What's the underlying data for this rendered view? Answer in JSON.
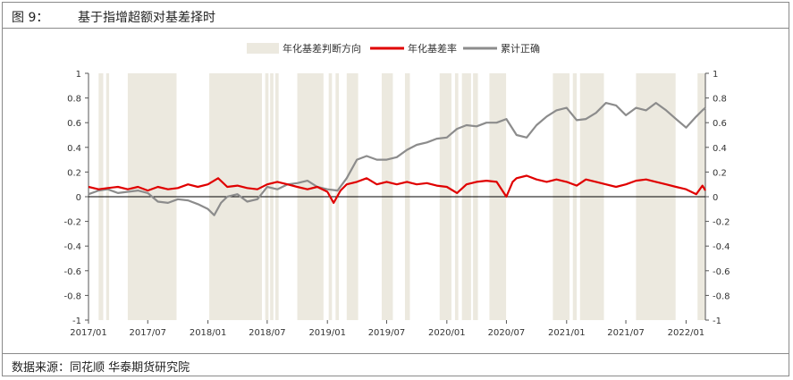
{
  "header": {
    "figure_label": "图 9：",
    "figure_title": "基于指增超额对基差择时"
  },
  "footer": {
    "source": "数据来源：同花顺 华泰期货研究院"
  },
  "colors": {
    "shade": "#ece9df",
    "basis_rate": "#e00000",
    "cumulative_accuracy": "#8c8c8c",
    "axis": "#555555"
  },
  "chart_data": {
    "type": "line",
    "legend_position": "top-center",
    "grid": false,
    "x_start": "2017-01",
    "x_end": "2022-03",
    "x_ticks": [
      "2017/01",
      "2017/07",
      "2018/01",
      "2018/07",
      "2019/01",
      "2019/07",
      "2020/01",
      "2020/07",
      "2021/01",
      "2021/07",
      "2022/01"
    ],
    "y_left": {
      "range": [
        -1,
        1
      ],
      "ticks": [
        "1",
        "0.8",
        "0.6",
        "0.4",
        "0.2",
        "0",
        "-0.2",
        "-0.4",
        "-0.6",
        "-0.8",
        "-1"
      ]
    },
    "y_right": {
      "range": [
        -1,
        1
      ],
      "ticks": [
        "1",
        "0.8",
        "0.6",
        "0.4",
        "0.2",
        "0",
        "-0.2",
        "-0.4",
        "-0.6",
        "-0.8",
        "-1"
      ]
    },
    "shade_series_name": "年化基差判断方向",
    "shaded_periods": [
      [
        "2017-02-01",
        "2017-02-15"
      ],
      [
        "2017-02-24",
        "2017-03-05"
      ],
      [
        "2017-05-01",
        "2017-09-27"
      ],
      [
        "2018-01-05",
        "2018-06-15"
      ],
      [
        "2018-06-25",
        "2018-07-05"
      ],
      [
        "2018-07-10",
        "2018-07-20"
      ],
      [
        "2018-07-26",
        "2018-08-05"
      ],
      [
        "2018-10-01",
        "2018-12-20"
      ],
      [
        "2019-01-05",
        "2019-01-15"
      ],
      [
        "2019-01-26",
        "2019-02-05"
      ],
      [
        "2019-03-01",
        "2019-04-05"
      ],
      [
        "2019-06-16",
        "2019-07-20"
      ],
      [
        "2019-08-26",
        "2019-09-10"
      ],
      [
        "2019-12-10",
        "2020-01-15"
      ],
      [
        "2020-01-26",
        "2020-02-05"
      ],
      [
        "2020-02-16",
        "2020-03-15"
      ],
      [
        "2020-03-21",
        "2020-04-05"
      ],
      [
        "2020-05-10",
        "2020-06-30"
      ],
      [
        "2020-11-20",
        "2021-01-10"
      ],
      [
        "2021-01-20",
        "2021-02-01"
      ],
      [
        "2021-02-11",
        "2021-04-25"
      ],
      [
        "2021-08-01",
        "2021-11-30"
      ],
      [
        "2022-02-05",
        "2022-03-01"
      ]
    ],
    "series": [
      {
        "name": "年化基差率",
        "axis": "left",
        "points": [
          [
            "2017-01-01",
            0.08
          ],
          [
            "2017-02-01",
            0.06
          ],
          [
            "2017-03-01",
            0.07
          ],
          [
            "2017-04-01",
            0.08
          ],
          [
            "2017-05-01",
            0.06
          ],
          [
            "2017-06-01",
            0.08
          ],
          [
            "2017-07-01",
            0.05
          ],
          [
            "2017-08-01",
            0.08
          ],
          [
            "2017-09-01",
            0.06
          ],
          [
            "2017-10-01",
            0.07
          ],
          [
            "2017-11-01",
            0.1
          ],
          [
            "2017-12-01",
            0.08
          ],
          [
            "2018-01-01",
            0.1
          ],
          [
            "2018-02-01",
            0.15
          ],
          [
            "2018-03-01",
            0.08
          ],
          [
            "2018-04-01",
            0.09
          ],
          [
            "2018-05-01",
            0.07
          ],
          [
            "2018-06-01",
            0.06
          ],
          [
            "2018-07-01",
            0.1
          ],
          [
            "2018-08-01",
            0.12
          ],
          [
            "2018-09-01",
            0.1
          ],
          [
            "2018-10-01",
            0.08
          ],
          [
            "2018-11-01",
            0.06
          ],
          [
            "2018-12-01",
            0.08
          ],
          [
            "2019-01-01",
            0.04
          ],
          [
            "2019-01-20",
            -0.05
          ],
          [
            "2019-02-10",
            0.05
          ],
          [
            "2019-03-01",
            0.1
          ],
          [
            "2019-04-01",
            0.12
          ],
          [
            "2019-05-01",
            0.15
          ],
          [
            "2019-06-01",
            0.1
          ],
          [
            "2019-07-01",
            0.12
          ],
          [
            "2019-08-01",
            0.1
          ],
          [
            "2019-09-01",
            0.12
          ],
          [
            "2019-10-01",
            0.1
          ],
          [
            "2019-11-01",
            0.11
          ],
          [
            "2019-12-01",
            0.09
          ],
          [
            "2020-01-01",
            0.08
          ],
          [
            "2020-02-01",
            0.03
          ],
          [
            "2020-03-01",
            0.1
          ],
          [
            "2020-04-01",
            0.12
          ],
          [
            "2020-05-01",
            0.13
          ],
          [
            "2020-06-01",
            0.12
          ],
          [
            "2020-07-01",
            0.0
          ],
          [
            "2020-07-20",
            0.12
          ],
          [
            "2020-08-01",
            0.15
          ],
          [
            "2020-09-01",
            0.17
          ],
          [
            "2020-10-01",
            0.14
          ],
          [
            "2020-11-01",
            0.12
          ],
          [
            "2020-12-01",
            0.14
          ],
          [
            "2021-01-01",
            0.12
          ],
          [
            "2021-02-01",
            0.09
          ],
          [
            "2021-03-01",
            0.14
          ],
          [
            "2021-04-01",
            0.12
          ],
          [
            "2021-05-01",
            0.1
          ],
          [
            "2021-06-01",
            0.08
          ],
          [
            "2021-07-01",
            0.1
          ],
          [
            "2021-08-01",
            0.13
          ],
          [
            "2021-09-01",
            0.14
          ],
          [
            "2021-10-01",
            0.12
          ],
          [
            "2021-11-01",
            0.1
          ],
          [
            "2021-12-01",
            0.08
          ],
          [
            "2022-01-01",
            0.06
          ],
          [
            "2022-02-01",
            0.02
          ],
          [
            "2022-02-20",
            0.09
          ],
          [
            "2022-03-01",
            0.05
          ]
        ]
      },
      {
        "name": "累计正确",
        "axis": "right",
        "points": [
          [
            "2017-01-01",
            0.02
          ],
          [
            "2017-02-01",
            0.05
          ],
          [
            "2017-03-01",
            0.06
          ],
          [
            "2017-04-01",
            0.03
          ],
          [
            "2017-05-01",
            0.04
          ],
          [
            "2017-06-01",
            0.05
          ],
          [
            "2017-07-01",
            0.03
          ],
          [
            "2017-08-01",
            -0.04
          ],
          [
            "2017-09-01",
            -0.05
          ],
          [
            "2017-10-01",
            -0.02
          ],
          [
            "2017-11-01",
            -0.03
          ],
          [
            "2017-12-01",
            -0.06
          ],
          [
            "2018-01-01",
            -0.1
          ],
          [
            "2018-01-20",
            -0.15
          ],
          [
            "2018-02-10",
            -0.05
          ],
          [
            "2018-03-01",
            0.0
          ],
          [
            "2018-04-01",
            0.02
          ],
          [
            "2018-05-01",
            -0.04
          ],
          [
            "2018-06-01",
            -0.02
          ],
          [
            "2018-07-01",
            0.08
          ],
          [
            "2018-08-01",
            0.06
          ],
          [
            "2018-09-01",
            0.1
          ],
          [
            "2018-10-01",
            0.11
          ],
          [
            "2018-11-01",
            0.13
          ],
          [
            "2018-12-01",
            0.08
          ],
          [
            "2019-01-01",
            0.06
          ],
          [
            "2019-02-01",
            0.05
          ],
          [
            "2019-03-01",
            0.15
          ],
          [
            "2019-04-01",
            0.3
          ],
          [
            "2019-05-01",
            0.33
          ],
          [
            "2019-06-01",
            0.3
          ],
          [
            "2019-07-01",
            0.3
          ],
          [
            "2019-08-01",
            0.32
          ],
          [
            "2019-09-01",
            0.38
          ],
          [
            "2019-10-01",
            0.42
          ],
          [
            "2019-11-01",
            0.44
          ],
          [
            "2019-12-01",
            0.47
          ],
          [
            "2020-01-01",
            0.48
          ],
          [
            "2020-02-01",
            0.55
          ],
          [
            "2020-03-01",
            0.58
          ],
          [
            "2020-04-01",
            0.57
          ],
          [
            "2020-05-01",
            0.6
          ],
          [
            "2020-06-01",
            0.6
          ],
          [
            "2020-07-01",
            0.63
          ],
          [
            "2020-08-01",
            0.5
          ],
          [
            "2020-09-01",
            0.48
          ],
          [
            "2020-10-01",
            0.58
          ],
          [
            "2020-11-01",
            0.65
          ],
          [
            "2020-12-01",
            0.7
          ],
          [
            "2021-01-01",
            0.72
          ],
          [
            "2021-02-01",
            0.62
          ],
          [
            "2021-03-01",
            0.63
          ],
          [
            "2021-04-01",
            0.68
          ],
          [
            "2021-05-01",
            0.76
          ],
          [
            "2021-06-01",
            0.74
          ],
          [
            "2021-07-01",
            0.66
          ],
          [
            "2021-08-01",
            0.72
          ],
          [
            "2021-09-01",
            0.7
          ],
          [
            "2021-10-01",
            0.76
          ],
          [
            "2021-11-01",
            0.7
          ],
          [
            "2021-12-01",
            0.63
          ],
          [
            "2022-01-01",
            0.56
          ],
          [
            "2022-02-01",
            0.65
          ],
          [
            "2022-02-20",
            0.7
          ],
          [
            "2022-03-01",
            0.72
          ]
        ]
      }
    ]
  }
}
